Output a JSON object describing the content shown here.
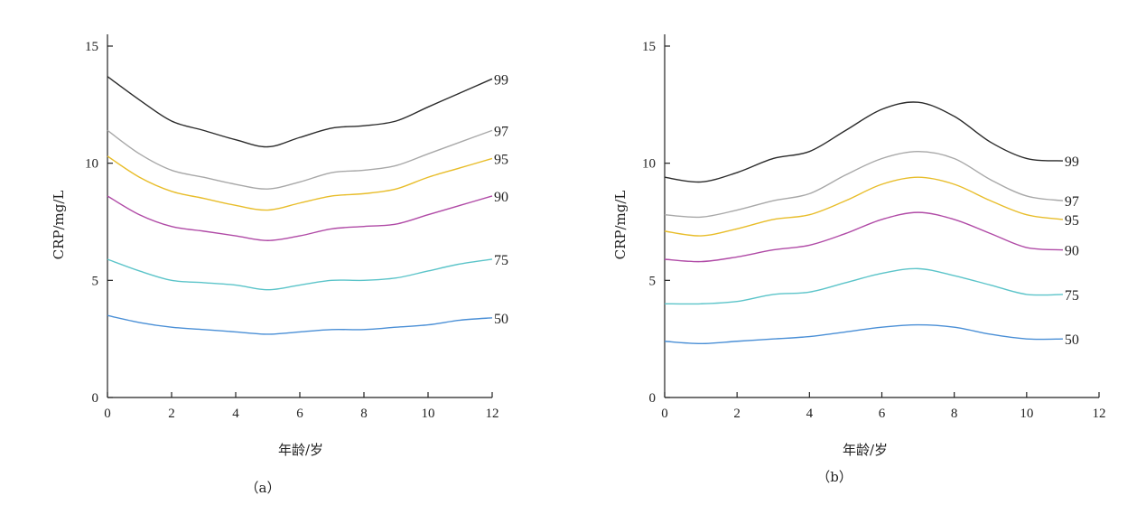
{
  "chart_data": [
    {
      "type": "line",
      "panel_label": "（a）",
      "xlabel": "年龄/岁",
      "ylabel": "CRP/mg/L",
      "xlim": [
        0,
        12
      ],
      "ylim": [
        0,
        15
      ],
      "xticks": [
        "0",
        "2",
        "4",
        "6",
        "8",
        "10",
        "12"
      ],
      "yticks": [
        "0",
        "5",
        "10",
        "15"
      ],
      "x": [
        0,
        1,
        2,
        3,
        4,
        5,
        6,
        7,
        8,
        9,
        10,
        11,
        12
      ],
      "series": [
        {
          "name": "99",
          "color": "#2b2b2b",
          "values": [
            13.7,
            12.7,
            11.8,
            11.4,
            11.0,
            10.7,
            11.1,
            11.5,
            11.6,
            11.8,
            12.4,
            13.0,
            13.6
          ]
        },
        {
          "name": "97",
          "color": "#a8a8a8",
          "values": [
            11.4,
            10.4,
            9.7,
            9.4,
            9.1,
            8.9,
            9.2,
            9.6,
            9.7,
            9.9,
            10.4,
            10.9,
            11.4
          ]
        },
        {
          "name": "95",
          "color": "#e8bd2a",
          "values": [
            10.3,
            9.4,
            8.8,
            8.5,
            8.2,
            8.0,
            8.3,
            8.6,
            8.7,
            8.9,
            9.4,
            9.8,
            10.2
          ]
        },
        {
          "name": "90",
          "color": "#b04aa6",
          "values": [
            8.6,
            7.8,
            7.3,
            7.1,
            6.9,
            6.7,
            6.9,
            7.2,
            7.3,
            7.4,
            7.8,
            8.2,
            8.6
          ]
        },
        {
          "name": "75",
          "color": "#5bc4c9",
          "values": [
            5.9,
            5.4,
            5.0,
            4.9,
            4.8,
            4.6,
            4.8,
            5.0,
            5.0,
            5.1,
            5.4,
            5.7,
            5.9
          ]
        },
        {
          "name": "50",
          "color": "#4a8fd6",
          "values": [
            3.5,
            3.2,
            3.0,
            2.9,
            2.8,
            2.7,
            2.8,
            2.9,
            2.9,
            3.0,
            3.1,
            3.3,
            3.4
          ]
        }
      ],
      "grid": false
    },
    {
      "type": "line",
      "panel_label": "（b）",
      "xlabel": "年龄/岁",
      "ylabel": "CRP/mg/L",
      "xlim": [
        0,
        12
      ],
      "ylim": [
        0,
        15
      ],
      "xticks": [
        "0",
        "2",
        "4",
        "6",
        "8",
        "10",
        "12"
      ],
      "yticks": [
        "0",
        "5",
        "10",
        "15"
      ],
      "x": [
        0,
        1,
        2,
        3,
        4,
        5,
        6,
        7,
        8,
        9,
        10,
        11
      ],
      "series": [
        {
          "name": "99",
          "color": "#2b2b2b",
          "values": [
            9.4,
            9.2,
            9.6,
            10.2,
            10.5,
            11.4,
            12.3,
            12.6,
            12.0,
            10.9,
            10.2,
            10.1
          ]
        },
        {
          "name": "97",
          "color": "#a8a8a8",
          "values": [
            7.8,
            7.7,
            8.0,
            8.4,
            8.7,
            9.5,
            10.2,
            10.5,
            10.2,
            9.3,
            8.6,
            8.4
          ]
        },
        {
          "name": "95",
          "color": "#e8bd2a",
          "values": [
            7.1,
            6.9,
            7.2,
            7.6,
            7.8,
            8.4,
            9.1,
            9.4,
            9.1,
            8.4,
            7.8,
            7.6
          ]
        },
        {
          "name": "90",
          "color": "#b04aa6",
          "values": [
            5.9,
            5.8,
            6.0,
            6.3,
            6.5,
            7.0,
            7.6,
            7.9,
            7.6,
            7.0,
            6.4,
            6.3
          ]
        },
        {
          "name": "75",
          "color": "#5bc4c9",
          "values": [
            4.0,
            4.0,
            4.1,
            4.4,
            4.5,
            4.9,
            5.3,
            5.5,
            5.2,
            4.8,
            4.4,
            4.4
          ]
        },
        {
          "name": "50",
          "color": "#4a8fd6",
          "values": [
            2.4,
            2.3,
            2.4,
            2.5,
            2.6,
            2.8,
            3.0,
            3.1,
            3.0,
            2.7,
            2.5,
            2.5
          ]
        }
      ],
      "grid": false
    }
  ]
}
